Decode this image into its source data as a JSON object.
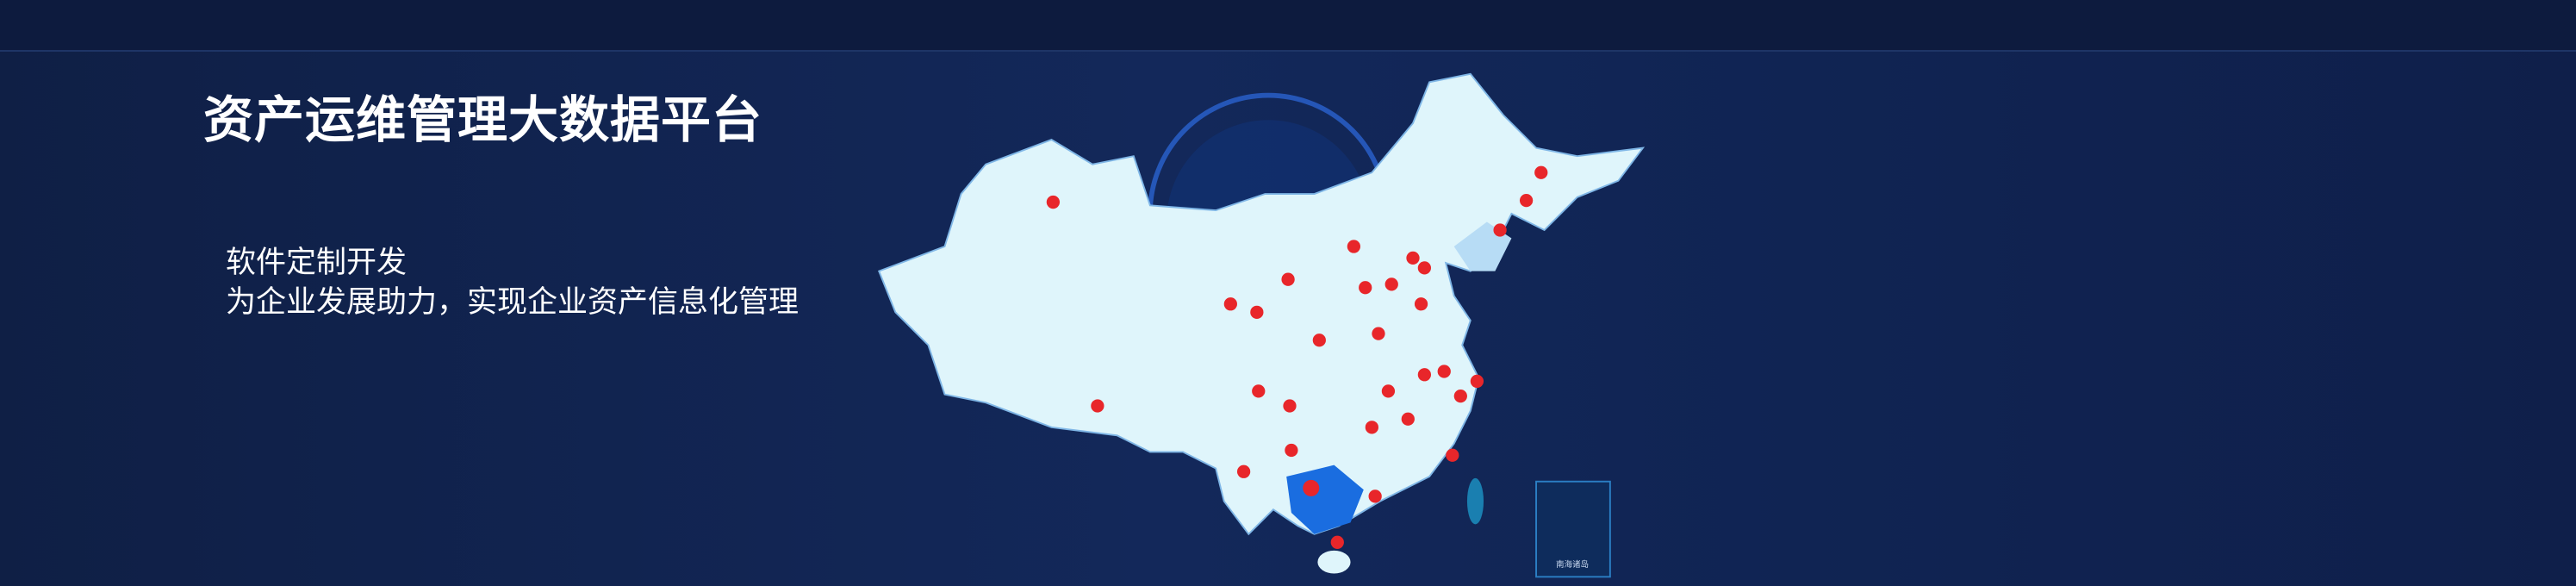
{
  "header": {
    "title": "资产运维管理大数据平台"
  },
  "banner": {
    "lines": [
      "软件定制开发",
      "为企业发展助力，实现企业资产信息化管理"
    ]
  },
  "map": {
    "inset_label": "南海诸岛"
  }
}
